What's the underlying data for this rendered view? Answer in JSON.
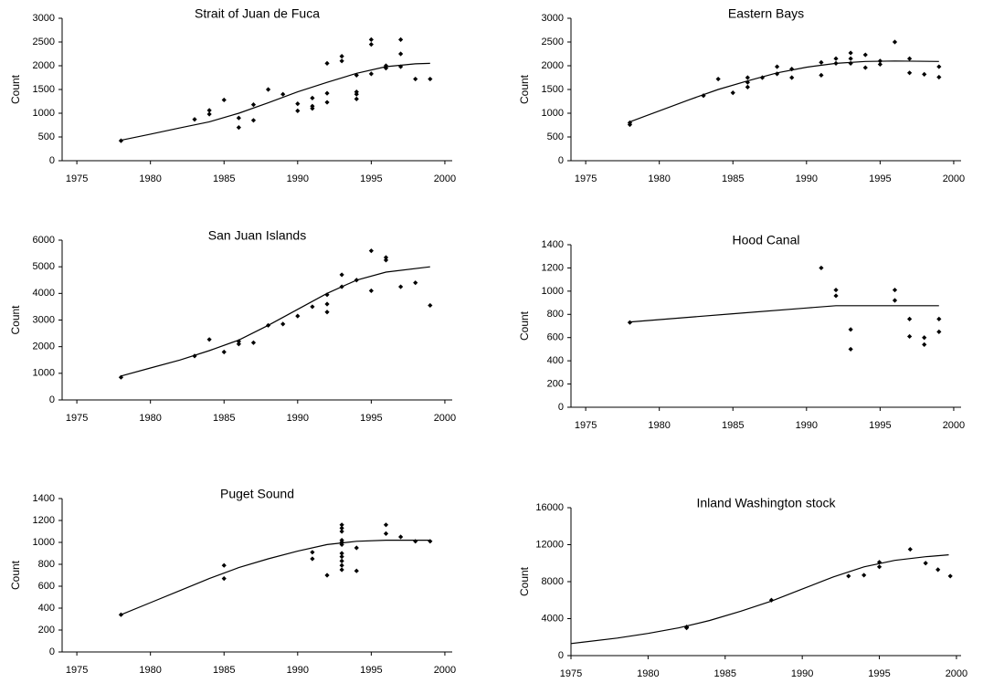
{
  "chart_data": [
    {
      "type": "scatter",
      "title": "Strait of Juan de Fuca",
      "y_label": "Count",
      "xlim": [
        1974,
        2000.5
      ],
      "xticks": [
        1975,
        1980,
        1985,
        1990,
        1995,
        2000
      ],
      "ylim": [
        0,
        3000
      ],
      "yticks": [
        0,
        500,
        1000,
        1500,
        2000,
        2500,
        3000
      ],
      "color": "#000000",
      "points": {
        "x": [
          1978,
          1983,
          1984,
          1984,
          1985,
          1986,
          1986,
          1987,
          1987,
          1988,
          1989,
          1990,
          1990,
          1991,
          1991,
          1991,
          1992,
          1992,
          1992,
          1993,
          1993,
          1994,
          1994,
          1994,
          1994,
          1995,
          1995,
          1995,
          1996,
          1996,
          1997,
          1997,
          1997,
          1998,
          1999
        ],
        "y": [
          420,
          870,
          980,
          1060,
          1280,
          700,
          900,
          850,
          1180,
          1500,
          1400,
          1050,
          1200,
          1100,
          1150,
          1320,
          1230,
          1420,
          2050,
          2100,
          2200,
          1300,
          1400,
          1450,
          1800,
          1830,
          2450,
          2550,
          1950,
          2000,
          1980,
          2250,
          2550,
          1720,
          1720
        ]
      },
      "curve": {
        "x": [
          1978,
          1980,
          1982,
          1984,
          1986,
          1988,
          1990,
          1992,
          1994,
          1996,
          1998,
          1999
        ],
        "y": [
          430,
          560,
          690,
          820,
          1000,
          1220,
          1450,
          1650,
          1840,
          1980,
          2040,
          2050
        ]
      }
    },
    {
      "type": "scatter",
      "title": "Eastern Bays",
      "y_label": "Count",
      "xlim": [
        1974,
        2000.5
      ],
      "xticks": [
        1975,
        1980,
        1985,
        1990,
        1995,
        2000
      ],
      "ylim": [
        0,
        3000
      ],
      "yticks": [
        0,
        500,
        1000,
        1500,
        2000,
        2500,
        3000
      ],
      "color": "#000000",
      "points": {
        "x": [
          1978,
          1978,
          1983,
          1984,
          1985,
          1986,
          1986,
          1986,
          1987,
          1988,
          1988,
          1989,
          1989,
          1991,
          1991,
          1992,
          1992,
          1993,
          1993,
          1993,
          1994,
          1994,
          1995,
          1995,
          1996,
          1997,
          1997,
          1998,
          1999,
          1999
        ],
        "y": [
          760,
          800,
          1370,
          1720,
          1430,
          1550,
          1650,
          1750,
          1750,
          1830,
          1980,
          1750,
          1930,
          1800,
          2070,
          2050,
          2150,
          2050,
          2150,
          2270,
          1960,
          2230,
          2030,
          2100,
          2500,
          1850,
          2150,
          1820,
          1760,
          1980
        ]
      },
      "curve": {
        "x": [
          1978,
          1980,
          1982,
          1984,
          1986,
          1988,
          1990,
          1992,
          1994,
          1996,
          1999
        ],
        "y": [
          820,
          1050,
          1280,
          1500,
          1680,
          1850,
          1970,
          2050,
          2090,
          2100,
          2090
        ]
      }
    },
    {
      "type": "scatter",
      "title": "San Juan Islands",
      "y_label": "Count",
      "xlim": [
        1974,
        2000.5
      ],
      "xticks": [
        1975,
        1980,
        1985,
        1990,
        1995,
        2000
      ],
      "ylim": [
        0,
        6000
      ],
      "yticks": [
        0,
        1000,
        2000,
        3000,
        4000,
        5000,
        6000
      ],
      "color": "#000000",
      "points": {
        "x": [
          1978,
          1983,
          1984,
          1985,
          1986,
          1986,
          1987,
          1988,
          1989,
          1990,
          1991,
          1992,
          1992,
          1992,
          1993,
          1993,
          1994,
          1995,
          1995,
          1996,
          1996,
          1997,
          1998,
          1999
        ],
        "y": [
          850,
          1650,
          2270,
          1800,
          2100,
          2200,
          2150,
          2800,
          2850,
          3150,
          3500,
          3300,
          3600,
          3950,
          4250,
          4700,
          4500,
          4100,
          5600,
          5250,
          5350,
          4250,
          4400,
          3550
        ]
      },
      "curve": {
        "x": [
          1978,
          1980,
          1982,
          1984,
          1986,
          1988,
          1990,
          1992,
          1994,
          1996,
          1999
        ],
        "y": [
          900,
          1200,
          1500,
          1850,
          2250,
          2800,
          3400,
          4000,
          4500,
          4800,
          5000
        ]
      }
    },
    {
      "type": "scatter",
      "title": "Hood Canal",
      "y_label": "Count",
      "xlim": [
        1974,
        2000.5
      ],
      "xticks": [
        1975,
        1980,
        1985,
        1990,
        1995,
        2000
      ],
      "ylim": [
        0,
        1400
      ],
      "yticks": [
        0,
        200,
        400,
        600,
        800,
        1000,
        1200,
        1400
      ],
      "color": "#000000",
      "points": {
        "x": [
          1978,
          1991,
          1992,
          1992,
          1993,
          1993,
          1996,
          1996,
          1997,
          1997,
          1998,
          1998,
          1999,
          1999
        ],
        "y": [
          730,
          1200,
          960,
          1010,
          500,
          670,
          920,
          1010,
          610,
          760,
          540,
          600,
          650,
          760
        ]
      },
      "curve": {
        "x": [
          1978,
          1985,
          1990,
          1992,
          1995,
          1999
        ],
        "y": [
          735,
          805,
          855,
          875,
          875,
          875
        ]
      }
    },
    {
      "type": "scatter",
      "title": "Puget Sound",
      "y_label": "Count",
      "xlim": [
        1974,
        2000.5
      ],
      "xticks": [
        1975,
        1980,
        1985,
        1990,
        1995,
        2000
      ],
      "ylim": [
        0,
        1400
      ],
      "yticks": [
        0,
        200,
        400,
        600,
        800,
        1000,
        1200,
        1400
      ],
      "color": "#000000",
      "points": {
        "x": [
          1978,
          1985,
          1985,
          1991,
          1991,
          1992,
          1993,
          1993,
          1993,
          1993,
          1993,
          1993,
          1993,
          1993,
          1993,
          1993,
          1993,
          1994,
          1994,
          1996,
          1996,
          1997,
          1998,
          1999
        ],
        "y": [
          340,
          670,
          790,
          850,
          910,
          700,
          750,
          790,
          830,
          870,
          900,
          980,
          1000,
          1020,
          1100,
          1130,
          1160,
          740,
          950,
          1080,
          1160,
          1050,
          1010,
          1010
        ]
      },
      "curve": {
        "x": [
          1978,
          1980,
          1982,
          1984,
          1986,
          1988,
          1990,
          1992,
          1994,
          1996,
          1999
        ],
        "y": [
          340,
          450,
          560,
          670,
          770,
          850,
          920,
          980,
          1010,
          1020,
          1020
        ]
      }
    },
    {
      "type": "scatter",
      "title": "Inland Washington stock",
      "y_label": "Count",
      "xlim": [
        1975,
        2000.3
      ],
      "xticks": [
        1975,
        1980,
        1985,
        1990,
        1995,
        2000
      ],
      "ylim": [
        0,
        16000
      ],
      "yticks": [
        0,
        4000,
        8000,
        12000,
        16000
      ],
      "color": "#000000",
      "points": {
        "x": [
          1982.5,
          1982.5,
          1988,
          1993,
          1994,
          1995,
          1995,
          1997,
          1998,
          1998.8,
          1999.6
        ],
        "y": [
          3000,
          3100,
          6000,
          8600,
          8700,
          10100,
          9600,
          11500,
          10000,
          9300,
          8600
        ]
      },
      "curve": {
        "x": [
          1975,
          1978,
          1980,
          1982,
          1984,
          1986,
          1988,
          1990,
          1992,
          1994,
          1996,
          1998,
          1999.5
        ],
        "y": [
          1300,
          1900,
          2400,
          3000,
          3800,
          4800,
          5900,
          7200,
          8500,
          9600,
          10300,
          10700,
          10900
        ]
      }
    }
  ]
}
